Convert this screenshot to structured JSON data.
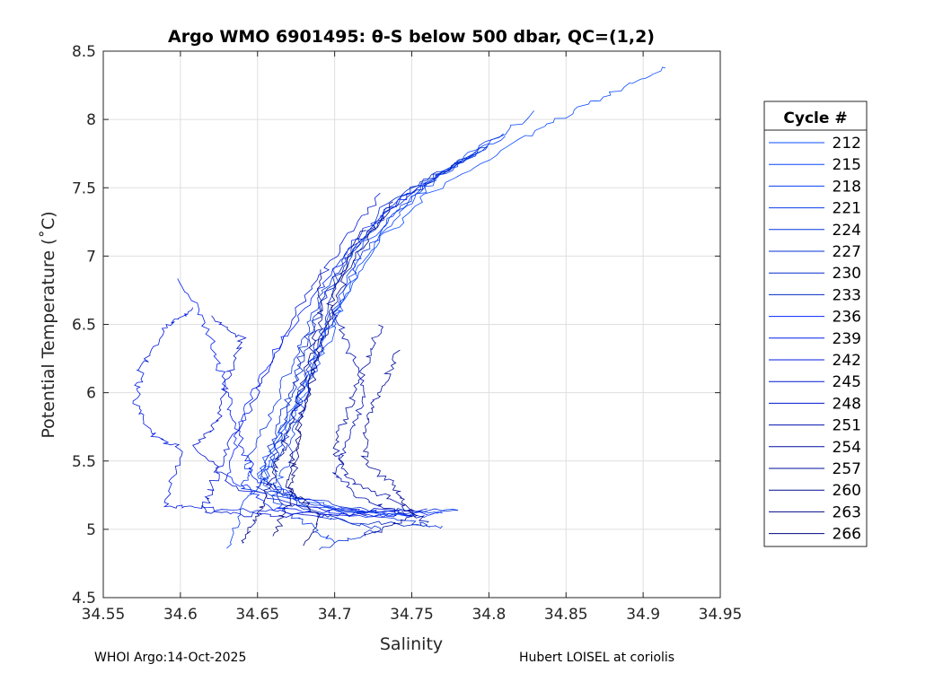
{
  "chart_data": {
    "type": "line",
    "title": "Argo WMO 6901495: θ-S below 500 dbar,  QC=(1,2)",
    "xlabel": "Salinity",
    "ylabel": "Potential Temperature (˚C)",
    "xlim": [
      34.55,
      34.95
    ],
    "ylim": [
      4.5,
      8.5
    ],
    "xticks": [
      34.55,
      34.6,
      34.65,
      34.7,
      34.75,
      34.8,
      34.85,
      34.9,
      34.95
    ],
    "xtick_labels": [
      "34.55",
      "34.6",
      "34.65",
      "34.7",
      "34.75",
      "34.8",
      "34.85",
      "34.9",
      "34.95"
    ],
    "yticks": [
      4.5,
      5,
      5.5,
      6,
      6.5,
      7,
      7.5,
      8,
      8.5
    ],
    "ytick_labels": [
      "4.5",
      "5",
      "5.5",
      "6",
      "6.5",
      "7",
      "7.5",
      "8",
      "8.5"
    ],
    "grid": true,
    "legend": {
      "title": "Cycle #",
      "placement": "right"
    },
    "series": [
      {
        "name": "212",
        "color": "#0a4cff",
        "points": [
          [
            34.917,
            8.39
          ],
          [
            34.87,
            8.15
          ],
          [
            34.82,
            7.85
          ],
          [
            34.76,
            7.45
          ],
          [
            34.72,
            7.0
          ],
          [
            34.7,
            6.5
          ],
          [
            34.68,
            6.0
          ],
          [
            34.66,
            5.6
          ],
          [
            34.655,
            5.3
          ],
          [
            34.7,
            5.15
          ],
          [
            34.76,
            5.1
          ]
        ]
      },
      {
        "name": "215",
        "color": "#0846fa",
        "points": [
          [
            34.83,
            8.05
          ],
          [
            34.78,
            7.7
          ],
          [
            34.74,
            7.3
          ],
          [
            34.71,
            6.8
          ],
          [
            34.69,
            6.3
          ],
          [
            34.67,
            5.8
          ],
          [
            34.65,
            5.4
          ],
          [
            34.68,
            5.18
          ],
          [
            34.74,
            5.1
          ],
          [
            34.78,
            5.14
          ]
        ]
      },
      {
        "name": "218",
        "color": "#0740f2",
        "points": [
          [
            34.81,
            7.88
          ],
          [
            34.76,
            7.55
          ],
          [
            34.72,
            7.1
          ],
          [
            34.7,
            6.6
          ],
          [
            34.68,
            6.1
          ],
          [
            34.665,
            5.6
          ],
          [
            34.645,
            5.25
          ],
          [
            34.63,
            4.86
          ]
        ]
      },
      {
        "name": "221",
        "color": "#063bea",
        "points": [
          [
            34.8,
            7.82
          ],
          [
            34.75,
            7.45
          ],
          [
            34.715,
            6.95
          ],
          [
            34.695,
            6.45
          ],
          [
            34.68,
            5.95
          ],
          [
            34.67,
            5.5
          ],
          [
            34.66,
            5.2
          ],
          [
            34.68,
            5.05
          ],
          [
            34.7,
            4.9
          ]
        ]
      },
      {
        "name": "224",
        "color": "#0536e0",
        "points": [
          [
            34.81,
            7.9
          ],
          [
            34.74,
            7.4
          ],
          [
            34.7,
            6.9
          ],
          [
            34.68,
            6.4
          ],
          [
            34.66,
            5.9
          ],
          [
            34.645,
            5.5
          ],
          [
            34.64,
            5.3
          ],
          [
            34.7,
            5.15
          ],
          [
            34.75,
            5.05
          ],
          [
            34.77,
            5.02
          ]
        ]
      },
      {
        "name": "227",
        "color": "#0431d6",
        "points": [
          [
            34.79,
            7.75
          ],
          [
            34.73,
            7.35
          ],
          [
            34.7,
            6.8
          ],
          [
            34.685,
            6.2
          ],
          [
            34.67,
            5.7
          ],
          [
            34.655,
            5.35
          ],
          [
            34.69,
            5.1
          ],
          [
            34.73,
            5.0
          ],
          [
            34.69,
            4.85
          ]
        ]
      },
      {
        "name": "230",
        "color": "#042ccc",
        "points": [
          [
            34.8,
            7.8
          ],
          [
            34.75,
            7.5
          ],
          [
            34.71,
            7.05
          ],
          [
            34.69,
            6.6
          ],
          [
            34.675,
            6.1
          ],
          [
            34.66,
            5.65
          ],
          [
            34.65,
            5.3
          ],
          [
            34.72,
            5.14
          ],
          [
            34.78,
            5.14
          ]
        ]
      },
      {
        "name": "233",
        "color": "#0328c2",
        "points": [
          [
            34.78,
            7.7
          ],
          [
            34.73,
            7.3
          ],
          [
            34.7,
            6.85
          ],
          [
            34.68,
            6.35
          ],
          [
            34.67,
            5.9
          ],
          [
            34.66,
            5.5
          ],
          [
            34.665,
            5.2
          ],
          [
            34.71,
            5.05
          ],
          [
            34.76,
            5.03
          ]
        ]
      },
      {
        "name": "236",
        "color": "#0324ff",
        "points": [
          [
            34.76,
            7.55
          ],
          [
            34.72,
            7.2
          ],
          [
            34.69,
            6.75
          ],
          [
            34.66,
            6.3
          ],
          [
            34.64,
            5.8
          ],
          [
            34.63,
            5.4
          ],
          [
            34.66,
            5.15
          ],
          [
            34.72,
            5.1
          ],
          [
            34.77,
            5.12
          ]
        ]
      },
      {
        "name": "239",
        "color": "#021fee",
        "points": [
          [
            34.6,
            6.84
          ],
          [
            34.62,
            6.4
          ],
          [
            34.63,
            6.0
          ],
          [
            34.64,
            5.6
          ],
          [
            34.65,
            5.35
          ],
          [
            34.7,
            5.15
          ],
          [
            34.75,
            5.12
          ]
        ]
      },
      {
        "name": "242",
        "color": "#021be0",
        "points": [
          [
            34.61,
            6.62
          ],
          [
            34.59,
            6.48
          ],
          [
            34.575,
            6.2
          ],
          [
            34.571,
            5.95
          ],
          [
            34.58,
            5.7
          ],
          [
            34.6,
            5.6
          ],
          [
            34.59,
            5.17
          ],
          [
            34.62,
            5.15
          ],
          [
            34.68,
            5.12
          ],
          [
            34.74,
            5.1
          ]
        ]
      },
      {
        "name": "245",
        "color": "#0218d4",
        "points": [
          [
            34.73,
            7.45
          ],
          [
            34.7,
            7.0
          ],
          [
            34.67,
            6.5
          ],
          [
            34.65,
            6.0
          ],
          [
            34.63,
            5.6
          ],
          [
            34.62,
            5.3
          ],
          [
            34.615,
            5.12
          ],
          [
            34.66,
            5.1
          ],
          [
            34.72,
            5.1
          ]
        ]
      },
      {
        "name": "248",
        "color": "#0114cc",
        "points": [
          [
            34.62,
            6.55
          ],
          [
            34.64,
            6.4
          ],
          [
            34.63,
            6.1
          ],
          [
            34.625,
            5.8
          ],
          [
            34.61,
            5.6
          ],
          [
            34.635,
            5.3
          ],
          [
            34.7,
            5.13
          ],
          [
            34.76,
            5.15
          ]
        ]
      },
      {
        "name": "251",
        "color": "#0011b0",
        "points": [
          [
            34.7,
            6.6
          ],
          [
            34.71,
            6.3
          ],
          [
            34.72,
            6.0
          ],
          [
            34.71,
            5.7
          ],
          [
            34.7,
            5.4
          ],
          [
            34.72,
            5.2
          ],
          [
            34.75,
            5.1
          ]
        ]
      },
      {
        "name": "254",
        "color": "#000ea4",
        "points": [
          [
            34.73,
            6.5
          ],
          [
            34.72,
            6.2
          ],
          [
            34.71,
            5.9
          ],
          [
            34.7,
            5.6
          ],
          [
            34.71,
            5.35
          ],
          [
            34.74,
            5.2
          ],
          [
            34.76,
            5.05
          ]
        ]
      },
      {
        "name": "257",
        "color": "#000c98",
        "points": [
          [
            34.74,
            6.3
          ],
          [
            34.73,
            6.0
          ],
          [
            34.72,
            5.8
          ],
          [
            34.72,
            5.5
          ],
          [
            34.74,
            5.3
          ],
          [
            34.75,
            5.1
          ],
          [
            34.72,
            4.95
          ]
        ]
      },
      {
        "name": "260",
        "color": "#000a8e",
        "points": [
          [
            34.69,
            6.9
          ],
          [
            34.69,
            6.5
          ],
          [
            34.68,
            6.1
          ],
          [
            34.67,
            5.7
          ],
          [
            34.66,
            5.4
          ],
          [
            34.65,
            5.1
          ],
          [
            34.64,
            4.9
          ]
        ]
      },
      {
        "name": "263",
        "color": "#000886",
        "points": [
          [
            34.72,
            7.2
          ],
          [
            34.7,
            6.8
          ],
          [
            34.69,
            6.3
          ],
          [
            34.68,
            5.9
          ],
          [
            34.675,
            5.5
          ],
          [
            34.67,
            5.2
          ],
          [
            34.66,
            4.95
          ]
        ]
      },
      {
        "name": "266",
        "color": "#00067e",
        "points": [
          [
            34.74,
            7.4
          ],
          [
            34.71,
            6.95
          ],
          [
            34.695,
            6.5
          ],
          [
            34.685,
            6.05
          ],
          [
            34.675,
            5.65
          ],
          [
            34.67,
            5.3
          ],
          [
            34.69,
            5.1
          ],
          [
            34.68,
            4.88
          ]
        ]
      }
    ]
  },
  "footer": {
    "left": "WHOI Argo:14-Oct-2025",
    "right": "Hubert LOISEL at coriolis"
  }
}
